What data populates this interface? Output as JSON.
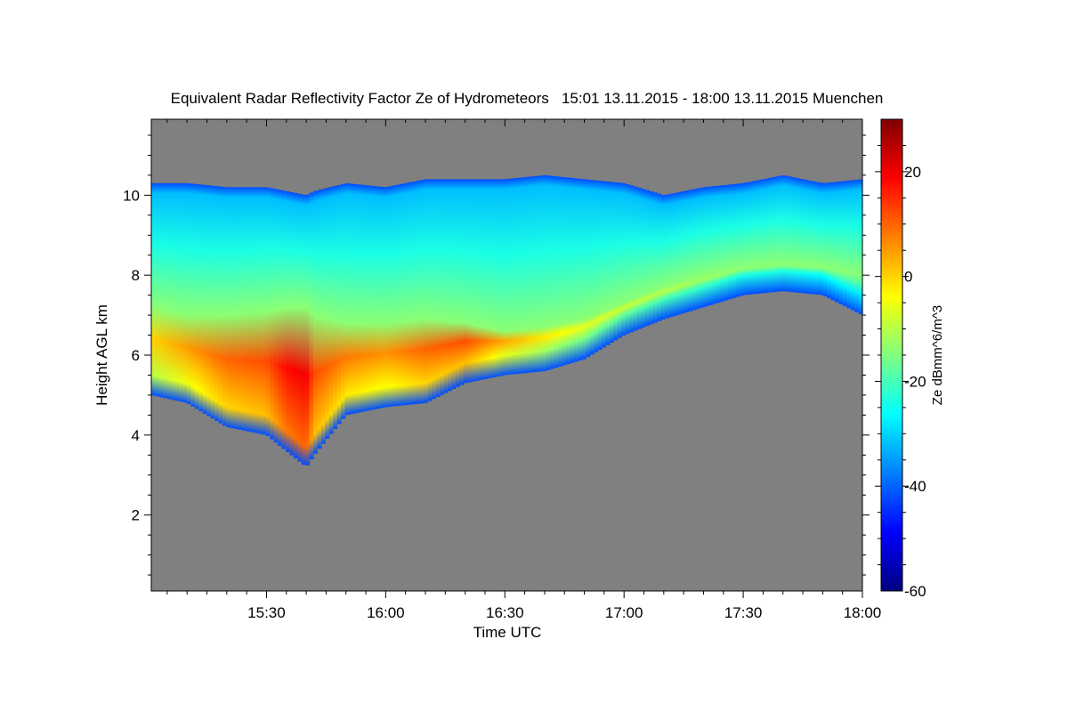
{
  "chart_data": {
    "type": "heatmap",
    "title": "Equivalent Radar Reflectivity Factor Ze of Hydrometeors   15:01 13.11.2015 - 18:00 13.11.2015 Muenchen",
    "xlabel": "Time UTC",
    "ylabel": "Height AGL km",
    "x_range": [
      "15:01",
      "18:00"
    ],
    "x_ticks": [
      "15:30",
      "16:00",
      "16:30",
      "17:00",
      "17:30",
      "18:00"
    ],
    "x_tick_times": [
      "15:30",
      "16:00",
      "16:30",
      "17:00",
      "17:30",
      "18:00"
    ],
    "ylim": [
      0.1,
      11.9
    ],
    "y_ticks": [
      2,
      4,
      6,
      8,
      10
    ],
    "y_tick_labels": [
      "2",
      "4",
      "6",
      "8",
      "10"
    ],
    "background_color": "#808080",
    "colorbar": {
      "label": "Ze dBmm^6/m^3",
      "range": [
        -60,
        30
      ],
      "ticks": [
        20,
        0,
        -20,
        -40,
        -60
      ],
      "tick_labels": [
        "20",
        "0",
        "-20",
        "-40",
        "-60"
      ],
      "colormap": "jet"
    },
    "cloud_profile": {
      "time": [
        "15:01",
        "15:10",
        "15:20",
        "15:30",
        "15:35",
        "15:40",
        "15:42",
        "15:50",
        "16:00",
        "16:10",
        "16:20",
        "16:30",
        "16:40",
        "16:50",
        "17:00",
        "17:10",
        "17:20",
        "17:30",
        "17:40",
        "17:50",
        "18:00"
      ],
      "top_km": [
        10.3,
        10.3,
        10.2,
        10.2,
        10.1,
        10.0,
        10.1,
        10.3,
        10.2,
        10.4,
        10.4,
        10.4,
        10.5,
        10.4,
        10.3,
        10.0,
        10.2,
        10.3,
        10.5,
        10.3,
        10.4
      ],
      "base_km": [
        5.0,
        4.8,
        4.2,
        4.0,
        3.6,
        3.2,
        3.5,
        4.5,
        4.7,
        4.8,
        5.3,
        5.5,
        5.6,
        5.9,
        6.5,
        6.9,
        7.2,
        7.5,
        7.6,
        7.5,
        7.0
      ],
      "core_top_km": [
        7.2,
        7.0,
        7.0,
        7.1,
        7.2,
        7.2,
        7.0,
        6.8,
        6.8,
        6.9,
        6.8,
        6.6,
        6.7,
        6.9,
        7.3,
        7.7,
        8.0,
        8.2,
        8.3,
        8.2,
        8.0
      ],
      "max_Ze": [
        0,
        5,
        10,
        12,
        18,
        20,
        12,
        8,
        6,
        10,
        12,
        4,
        -2,
        -6,
        -8,
        -10,
        -12,
        -14,
        -14,
        -16,
        -18
      ]
    }
  }
}
